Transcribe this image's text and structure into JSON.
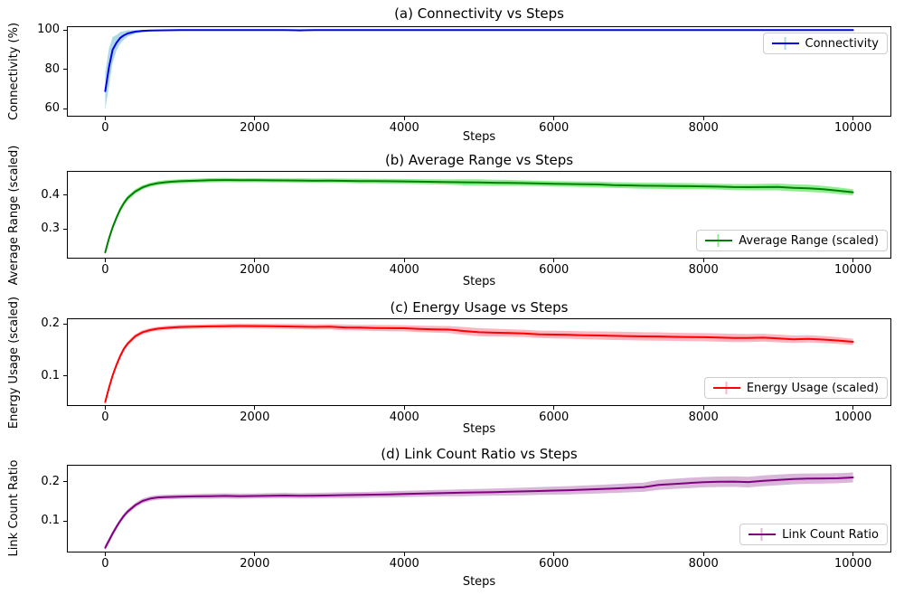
{
  "figure": {
    "xlabel": "Steps",
    "xtick_labels": [
      "0",
      "2000",
      "4000",
      "6000",
      "8000",
      "10000"
    ]
  },
  "chart_data": [
    {
      "type": "line",
      "title": "(a) Connectivity vs Steps",
      "ylabel": "Connectivity (%)",
      "xlabel": "Steps",
      "legend": "Connectivity",
      "legend_loc": "upper right",
      "line_color": "#0101ee",
      "band_color": "#add8e6",
      "xlim": [
        -500,
        10500
      ],
      "ylim": [
        56.5,
        101.5
      ],
      "xticks": [
        0,
        2000,
        4000,
        6000,
        8000,
        10000
      ],
      "xtick_labels": [
        "0",
        "2000",
        "4000",
        "6000",
        "8000",
        "10000"
      ],
      "yticks": [
        60,
        80,
        100
      ],
      "ytick_labels": [
        "60",
        "80",
        "100"
      ],
      "band_cap": 100,
      "x": [
        0,
        50,
        100,
        150,
        200,
        250,
        300,
        400,
        500,
        600,
        700,
        800,
        900,
        1000,
        1200,
        1400,
        1600,
        1800,
        2000,
        2200,
        2400,
        2600,
        2800,
        3000,
        3200,
        3400,
        3600,
        3800,
        4000,
        4200,
        4400,
        4600,
        4800,
        5000,
        5200,
        5400,
        5600,
        5800,
        6000,
        6200,
        6400,
        6600,
        6800,
        7000,
        7200,
        7400,
        7600,
        7800,
        8000,
        8200,
        8400,
        8600,
        8800,
        9000,
        9200,
        9400,
        9600,
        9800,
        10000
      ],
      "y": [
        69,
        81,
        90,
        93.5,
        96,
        97.3,
        98.3,
        99.2,
        99.6,
        99.8,
        99.85,
        99.9,
        99.95,
        99.97,
        100,
        100,
        100,
        100,
        100,
        100,
        100,
        99.9,
        100,
        100,
        100,
        100,
        100,
        100,
        100,
        100,
        100,
        100,
        100,
        100,
        100,
        100,
        100,
        100,
        100,
        100,
        100,
        100,
        100,
        100,
        100,
        100,
        100,
        100,
        100,
        100,
        100,
        100,
        100,
        100,
        100,
        100,
        100,
        100,
        100
      ],
      "band": [
        9.5,
        9.5,
        6.5,
        4,
        3,
        2.2,
        1.6,
        1.0,
        0.7,
        0.5,
        0.4,
        0.35,
        0.3,
        0.25,
        0.12,
        0.12,
        0.12,
        0.12,
        0.12,
        0.12,
        0.12,
        0.7,
        0.12,
        0.12,
        0.12,
        0.12,
        0.12,
        0.12,
        0.12,
        0.12,
        0.12,
        0.12,
        0.12,
        0.12,
        0.12,
        0.12,
        0.12,
        0.12,
        0.12,
        0.12,
        0.12,
        0.12,
        0.12,
        0.12,
        0.12,
        0.12,
        0.12,
        0.12,
        0.12,
        0.12,
        0.12,
        0.12,
        0.12,
        0.12,
        0.12,
        0.12,
        0.12,
        0.12,
        0.12
      ]
    },
    {
      "type": "line",
      "title": "(b) Average Range vs Steps",
      "ylabel": "Average Range (scaled)",
      "xlabel": "Steps",
      "legend": "Average Range (scaled)",
      "legend_loc": "lower right",
      "line_color": "#008000",
      "band_color": "#90ee90",
      "xlim": [
        -500,
        10500
      ],
      "ylim": [
        0.216,
        0.468
      ],
      "xticks": [
        0,
        2000,
        4000,
        6000,
        8000,
        10000
      ],
      "xtick_labels": [
        "0",
        "2000",
        "4000",
        "6000",
        "8000",
        "10000"
      ],
      "yticks": [
        0.3,
        0.4
      ],
      "ytick_labels": [
        "0.3",
        "0.4"
      ],
      "x": [
        0,
        50,
        100,
        150,
        200,
        250,
        300,
        400,
        500,
        600,
        700,
        800,
        900,
        1000,
        1200,
        1400,
        1600,
        1800,
        2000,
        2200,
        2400,
        2600,
        2800,
        3000,
        3200,
        3400,
        3600,
        3800,
        4000,
        4200,
        4400,
        4600,
        4800,
        5000,
        5200,
        5400,
        5600,
        5800,
        6000,
        6200,
        6400,
        6600,
        6800,
        7000,
        7200,
        7400,
        7600,
        7800,
        8000,
        8200,
        8400,
        8600,
        8800,
        9000,
        9200,
        9400,
        9600,
        9800,
        10000
      ],
      "y": [
        0.232,
        0.272,
        0.305,
        0.333,
        0.357,
        0.376,
        0.391,
        0.41,
        0.4225,
        0.43,
        0.4345,
        0.4372,
        0.439,
        0.4403,
        0.4418,
        0.4432,
        0.4438,
        0.4432,
        0.4435,
        0.443,
        0.4428,
        0.4425,
        0.4418,
        0.442,
        0.4415,
        0.441,
        0.4408,
        0.4403,
        0.4398,
        0.4392,
        0.4385,
        0.4378,
        0.4372,
        0.4368,
        0.436,
        0.4355,
        0.4348,
        0.4338,
        0.433,
        0.4322,
        0.4315,
        0.4308,
        0.429,
        0.4282,
        0.4272,
        0.4268,
        0.4262,
        0.4258,
        0.4253,
        0.4245,
        0.4232,
        0.4228,
        0.4232,
        0.4236,
        0.421,
        0.4195,
        0.417,
        0.4125,
        0.408
      ],
      "band": [
        0.008,
        0.008,
        0.008,
        0.0078,
        0.0075,
        0.0072,
        0.007,
        0.0065,
        0.006,
        0.006,
        0.006,
        0.006,
        0.006,
        0.006,
        0.006,
        0.0062,
        0.0062,
        0.006,
        0.006,
        0.006,
        0.0062,
        0.0065,
        0.0065,
        0.0065,
        0.0065,
        0.0068,
        0.0068,
        0.007,
        0.007,
        0.0072,
        0.0075,
        0.0078,
        0.009,
        0.0095,
        0.009,
        0.0085,
        0.008,
        0.008,
        0.008,
        0.008,
        0.0082,
        0.0085,
        0.0085,
        0.0085,
        0.0088,
        0.009,
        0.009,
        0.009,
        0.0085,
        0.0085,
        0.009,
        0.0092,
        0.0095,
        0.01,
        0.0102,
        0.0105,
        0.01,
        0.0095,
        0.009
      ]
    },
    {
      "type": "line",
      "title": "(c) Energy Usage vs Steps",
      "ylabel": "Energy Usage (scaled)",
      "xlabel": "Steps",
      "legend": "Energy Usage (scaled)",
      "legend_loc": "lower right",
      "line_color": "#ff0000",
      "band_color": "#ffb6c1",
      "xlim": [
        -500,
        10500
      ],
      "ylim": [
        0.044,
        0.209
      ],
      "xticks": [
        0,
        2000,
        4000,
        6000,
        8000,
        10000
      ],
      "xtick_labels": [
        "0",
        "2000",
        "4000",
        "6000",
        "8000",
        "10000"
      ],
      "yticks": [
        0.1,
        0.2
      ],
      "ytick_labels": [
        "0.1",
        "0.2"
      ],
      "x": [
        0,
        50,
        100,
        150,
        200,
        250,
        300,
        400,
        500,
        600,
        700,
        800,
        900,
        1000,
        1200,
        1400,
        1600,
        1800,
        2000,
        2200,
        2400,
        2600,
        2800,
        3000,
        3200,
        3400,
        3600,
        3800,
        4000,
        4200,
        4400,
        4600,
        4800,
        5000,
        5200,
        5400,
        5600,
        5800,
        6000,
        6200,
        6400,
        6600,
        6800,
        7000,
        7200,
        7400,
        7600,
        7800,
        8000,
        8200,
        8400,
        8600,
        8800,
        9000,
        9200,
        9400,
        9600,
        9800,
        10000
      ],
      "y": [
        0.05,
        0.077,
        0.101,
        0.121,
        0.138,
        0.152,
        0.162,
        0.1762,
        0.184,
        0.1882,
        0.1908,
        0.1922,
        0.1932,
        0.194,
        0.1948,
        0.1952,
        0.1956,
        0.196,
        0.1958,
        0.1954,
        0.1951,
        0.1948,
        0.1942,
        0.1945,
        0.1932,
        0.1928,
        0.1922,
        0.1918,
        0.1916,
        0.1905,
        0.1896,
        0.189,
        0.1862,
        0.184,
        0.1832,
        0.1825,
        0.1818,
        0.18,
        0.1795,
        0.179,
        0.1782,
        0.1778,
        0.177,
        0.1766,
        0.176,
        0.1758,
        0.1752,
        0.1748,
        0.1745,
        0.1738,
        0.173,
        0.1728,
        0.1735,
        0.172,
        0.1705,
        0.1712,
        0.17,
        0.168,
        0.1655
      ],
      "band": [
        0.005,
        0.005,
        0.005,
        0.005,
        0.0048,
        0.0045,
        0.0042,
        0.004,
        0.004,
        0.004,
        0.004,
        0.004,
        0.004,
        0.004,
        0.004,
        0.0042,
        0.0045,
        0.0045,
        0.0045,
        0.0048,
        0.005,
        0.005,
        0.005,
        0.0052,
        0.0055,
        0.0055,
        0.0058,
        0.006,
        0.006,
        0.0062,
        0.0065,
        0.0068,
        0.0075,
        0.0078,
        0.0075,
        0.0072,
        0.007,
        0.0072,
        0.0075,
        0.0075,
        0.0075,
        0.0078,
        0.008,
        0.008,
        0.008,
        0.008,
        0.0078,
        0.0078,
        0.0078,
        0.008,
        0.008,
        0.0078,
        0.0075,
        0.0075,
        0.0072,
        0.007,
        0.0068,
        0.0065,
        0.006
      ]
    },
    {
      "type": "line",
      "title": "(d) Link Count Ratio vs Steps",
      "ylabel": "Link Count Ratio",
      "xlabel": "Steps",
      "legend": "Link Count Ratio",
      "legend_loc": "lower right",
      "line_color": "#800080",
      "band_color": "#d8b7d8",
      "xlim": [
        -500,
        10500
      ],
      "ylim": [
        0.022,
        0.241
      ],
      "xticks": [
        0,
        2000,
        4000,
        6000,
        8000,
        10000
      ],
      "xtick_labels": [
        "0",
        "2000",
        "4000",
        "6000",
        "8000",
        "10000"
      ],
      "yticks": [
        0.1,
        0.2
      ],
      "ytick_labels": [
        "0.1",
        "0.2"
      ],
      "x": [
        0,
        50,
        100,
        150,
        200,
        250,
        300,
        400,
        500,
        600,
        700,
        800,
        900,
        1000,
        1200,
        1400,
        1600,
        1800,
        2000,
        2200,
        2400,
        2600,
        2800,
        3000,
        3200,
        3400,
        3600,
        3800,
        4000,
        4200,
        4400,
        4600,
        4800,
        5000,
        5200,
        5400,
        5600,
        5800,
        6000,
        6200,
        6400,
        6600,
        6800,
        7000,
        7200,
        7400,
        7600,
        7800,
        8000,
        8200,
        8400,
        8600,
        8800,
        9000,
        9200,
        9400,
        9600,
        9800,
        10000
      ],
      "y": [
        0.032,
        0.05,
        0.068,
        0.085,
        0.1,
        0.113,
        0.124,
        0.14,
        0.151,
        0.157,
        0.16,
        0.161,
        0.1615,
        0.1622,
        0.1628,
        0.1632,
        0.164,
        0.1632,
        0.1638,
        0.1645,
        0.165,
        0.1642,
        0.1648,
        0.1652,
        0.166,
        0.1665,
        0.1672,
        0.168,
        0.169,
        0.1698,
        0.1708,
        0.1715,
        0.1722,
        0.173,
        0.1738,
        0.1745,
        0.1755,
        0.1765,
        0.1775,
        0.1785,
        0.1798,
        0.1812,
        0.1828,
        0.1845,
        0.1862,
        0.192,
        0.1945,
        0.1968,
        0.199,
        0.2,
        0.2005,
        0.1992,
        0.2025,
        0.2048,
        0.207,
        0.208,
        0.2085,
        0.209,
        0.211
      ],
      "band": [
        0.007,
        0.007,
        0.007,
        0.0065,
        0.006,
        0.006,
        0.006,
        0.006,
        0.006,
        0.006,
        0.006,
        0.006,
        0.006,
        0.006,
        0.0062,
        0.0065,
        0.0068,
        0.0065,
        0.0065,
        0.0068,
        0.007,
        0.0068,
        0.007,
        0.007,
        0.0072,
        0.0075,
        0.0075,
        0.0078,
        0.008,
        0.008,
        0.0082,
        0.0085,
        0.0088,
        0.009,
        0.0092,
        0.0095,
        0.0098,
        0.01,
        0.0102,
        0.0105,
        0.0108,
        0.011,
        0.0112,
        0.0115,
        0.0118,
        0.0128,
        0.013,
        0.0132,
        0.0132,
        0.0134,
        0.0134,
        0.0136,
        0.0136,
        0.0136,
        0.0134,
        0.0132,
        0.013,
        0.0128,
        0.0126
      ]
    }
  ]
}
